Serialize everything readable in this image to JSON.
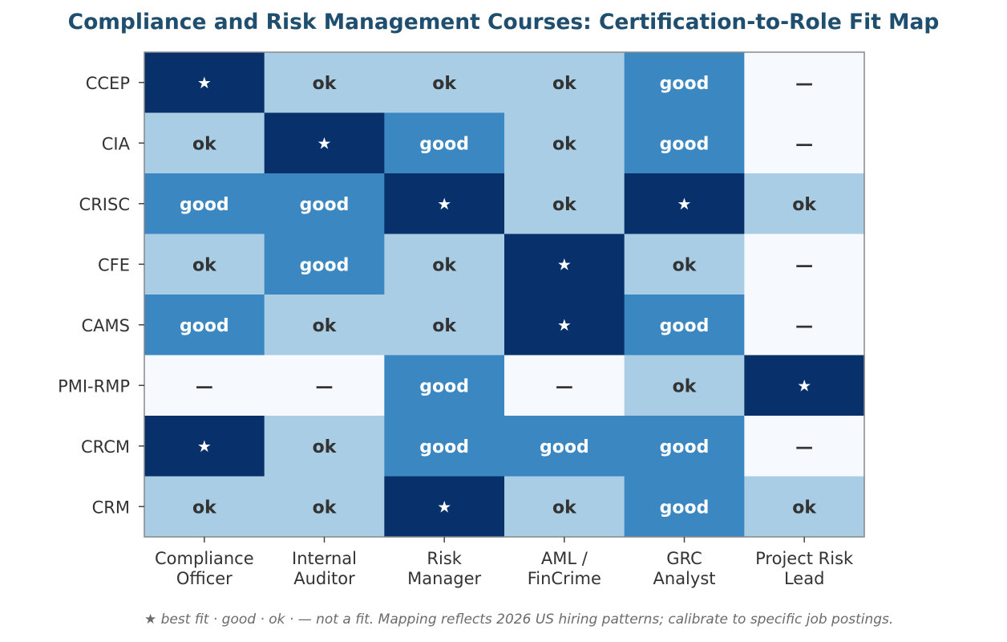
{
  "title": "Compliance and Risk Management Courses: Certification-to-Role Fit Map",
  "footnote": "★ best fit · good · ok · — not a fit. Mapping reflects 2026 US hiring patterns; calibrate to specific job postings.",
  "colors": {
    "best": "#08306b",
    "good": "#3a87c2",
    "ok": "#a8cde4",
    "none": "#f6fafe",
    "text_light": "#ffffff",
    "text_dark": "#333333",
    "frame": "#888888"
  },
  "chart_data": {
    "type": "heatmap",
    "title": "Compliance and Risk Management Courses: Certification-to-Role Fit Map",
    "rows": [
      "CCEP",
      "CIA",
      "CRISC",
      "CFE",
      "CAMS",
      "PMI-RMP",
      "CRCM",
      "CRM"
    ],
    "columns": [
      [
        "Compliance",
        "Officer"
      ],
      [
        "Internal",
        "Auditor"
      ],
      [
        "Risk",
        "Manager"
      ],
      [
        "AML /",
        "FinCrime"
      ],
      [
        "GRC",
        "Analyst"
      ],
      [
        "Project Risk",
        "Lead"
      ]
    ],
    "values": [
      [
        "★",
        "ok",
        "ok",
        "ok",
        "good",
        "—"
      ],
      [
        "ok",
        "★",
        "good",
        "ok",
        "good",
        "—"
      ],
      [
        "good",
        "good",
        "★",
        "ok",
        "★",
        "ok"
      ],
      [
        "ok",
        "good",
        "ok",
        "★",
        "ok",
        "—"
      ],
      [
        "good",
        "ok",
        "ok",
        "★",
        "good",
        "—"
      ],
      [
        "—",
        "—",
        "good",
        "—",
        "ok",
        "★"
      ],
      [
        "★",
        "ok",
        "good",
        "good",
        "good",
        "—"
      ],
      [
        "ok",
        "ok",
        "★",
        "ok",
        "good",
        "ok"
      ]
    ],
    "levels": {
      "★": "best",
      "good": "good",
      "ok": "ok",
      "—": "none"
    }
  }
}
